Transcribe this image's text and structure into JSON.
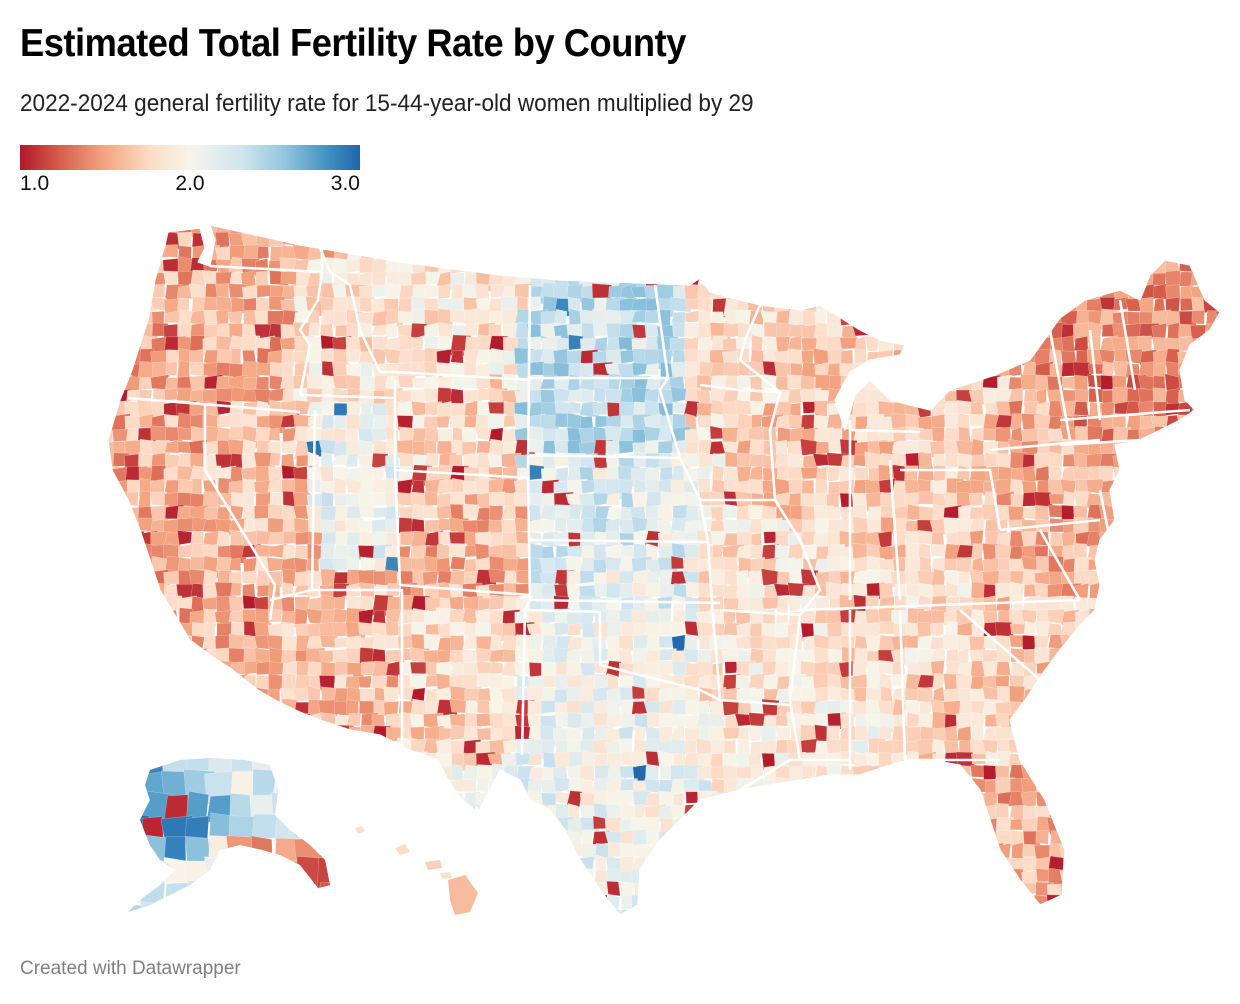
{
  "header": {
    "title": "Estimated Total Fertility Rate by County",
    "subtitle": "2022-2024 general fertility rate for 15-44-year-old women multiplied by 29"
  },
  "legend": {
    "type": "continuous",
    "min_label": "1.0",
    "mid_label": "2.0",
    "max_label": "3.0",
    "min": 1.0,
    "mid": 2.0,
    "max": 3.0,
    "colors": [
      "#b2182b",
      "#d6604d",
      "#f4a582",
      "#fddbc7",
      "#f7f5ea",
      "#d1e5f0",
      "#92c5de",
      "#4393c3",
      "#2166ac"
    ]
  },
  "map": {
    "geography": "United States counties (contiguous US, Alaska, Hawaii)",
    "metric": "Estimated total fertility rate",
    "regional_tendencies": [
      {
        "region": "Great Plains (Dakotas, Nebraska, Kansas)",
        "tendency": "high",
        "approx_value": 2.4
      },
      {
        "region": "West Texas / Texas Panhandle",
        "tendency": "high",
        "approx_value": 2.3
      },
      {
        "region": "Western Alaska",
        "tendency": "high",
        "approx_value": 2.6
      },
      {
        "region": "Utah / Idaho",
        "tendency": "above average",
        "approx_value": 2.1
      },
      {
        "region": "Pacific Northwest",
        "tendency": "low",
        "approx_value": 1.5
      },
      {
        "region": "California coast",
        "tendency": "low",
        "approx_value": 1.5
      },
      {
        "region": "Nevada / Arizona",
        "tendency": "low",
        "approx_value": 1.6
      },
      {
        "region": "Colorado",
        "tendency": "low",
        "approx_value": 1.5
      },
      {
        "region": "Midwest / Great Lakes",
        "tendency": "below average",
        "approx_value": 1.75
      },
      {
        "region": "Southeast",
        "tendency": "below average",
        "approx_value": 1.75
      },
      {
        "region": "Florida",
        "tendency": "low",
        "approx_value": 1.55
      },
      {
        "region": "New England / Northeast",
        "tendency": "low",
        "approx_value": 1.45
      },
      {
        "region": "Hawaii",
        "tendency": "below average",
        "approx_value": 1.7
      }
    ]
  },
  "footer": {
    "credit": "Created with Datawrapper"
  }
}
